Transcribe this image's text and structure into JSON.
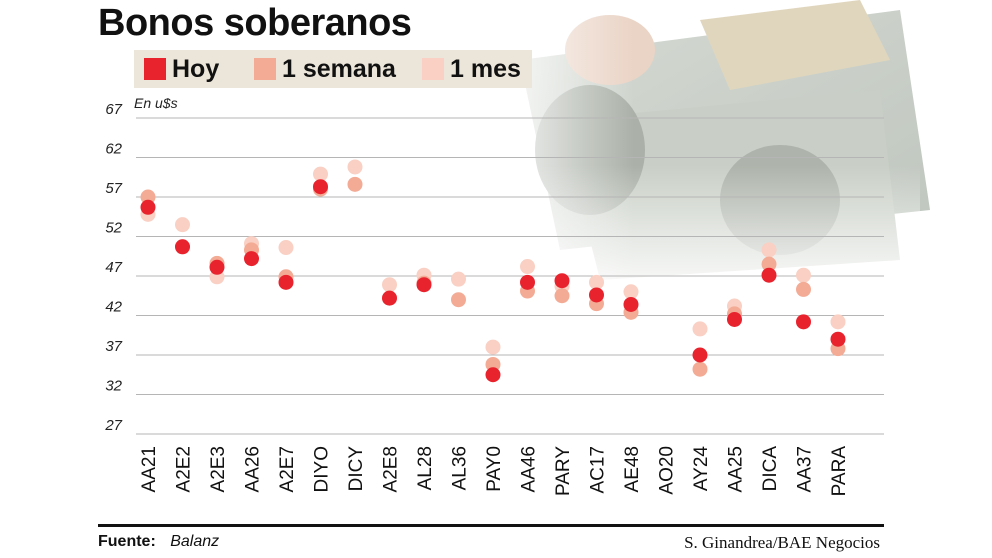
{
  "chart_data": {
    "type": "scatter",
    "title": "Bonos soberanos",
    "ylabel": "En u$s",
    "ylim": [
      27,
      67
    ],
    "yticks": [
      27,
      32,
      37,
      42,
      47,
      52,
      57,
      62,
      67
    ],
    "grid": true,
    "legend_position": "top-left",
    "categories": [
      "AA21",
      "A2E2",
      "A2E3",
      "AA26",
      "A2E7",
      "DIYO",
      "DICY",
      "A2E8",
      "AL28",
      "AL36",
      "PAY0",
      "AA46",
      "PARY",
      "AC17",
      "AE48",
      "AO20",
      "AY24",
      "AA25",
      "DICA",
      "AA37",
      "PARA"
    ],
    "series": [
      {
        "name": "Hoy",
        "color": "#e8232e",
        "values": [
          55.7,
          50.7,
          48.1,
          49.2,
          46.2,
          58.3,
          null,
          44.2,
          45.9,
          null,
          34.5,
          46.2,
          46.4,
          44.6,
          43.4,
          null,
          37.0,
          41.5,
          47.1,
          41.2,
          39.0
        ]
      },
      {
        "name": "1 semana",
        "color": "#f3ab95",
        "values": [
          57.0,
          50.7,
          48.6,
          50.3,
          46.9,
          58.0,
          58.6,
          44.2,
          46.1,
          44.0,
          35.8,
          45.1,
          44.5,
          43.5,
          42.4,
          null,
          35.2,
          42.2,
          48.5,
          45.3,
          37.8
        ]
      },
      {
        "name": "1 mes",
        "color": "#f9d0c3",
        "values": [
          54.8,
          53.5,
          46.9,
          51.1,
          50.6,
          59.9,
          60.8,
          45.9,
          47.1,
          46.6,
          38.0,
          48.2,
          45.7,
          46.2,
          45.0,
          null,
          40.3,
          43.2,
          50.3,
          47.1,
          41.2
        ]
      }
    ]
  },
  "footer": {
    "source_label": "Fuente:",
    "source_value": "Balanz",
    "credit": "S. Ginandrea/BAE Negocios"
  }
}
